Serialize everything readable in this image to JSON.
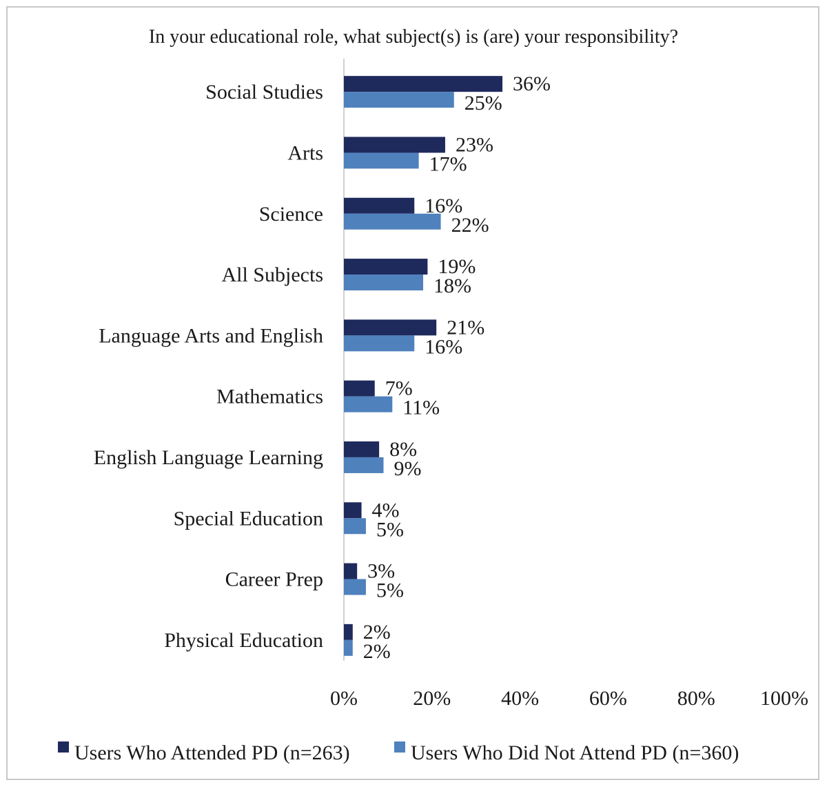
{
  "chart_data": {
    "type": "bar",
    "orientation": "horizontal",
    "title": "In your educational role, what subject(s) is (are) your responsibility?",
    "xlabel": "",
    "ylabel": "",
    "categories": [
      "Social Studies",
      "Arts",
      "Science",
      "All Subjects",
      "Language Arts and English",
      "Mathematics",
      "English Language Learning",
      "Special Education",
      "Career Prep",
      "Physical Education"
    ],
    "series": [
      {
        "name": "Users Who Attended PD (n=263)",
        "color": "#1f2a5c",
        "values": [
          36,
          23,
          16,
          19,
          21,
          7,
          8,
          4,
          3,
          2
        ],
        "labels": [
          "36%",
          "23%",
          "16%",
          "19%",
          "21%",
          "7%",
          "8%",
          "4%",
          "3%",
          "2%"
        ]
      },
      {
        "name": "Users Who Did Not Attend PD (n=360)",
        "color": "#4f81bd",
        "values": [
          25,
          17,
          22,
          18,
          16,
          11,
          9,
          5,
          5,
          2
        ],
        "labels": [
          "25%",
          "17%",
          "22%",
          "18%",
          "16%",
          "11%",
          "9%",
          "5%",
          "5%",
          "2%"
        ]
      }
    ],
    "xlim": [
      0,
      100
    ],
    "ticks": [
      0,
      20,
      40,
      60,
      80,
      100
    ],
    "tick_labels": [
      "0%",
      "20%",
      "40%",
      "60%",
      "80%",
      "100%"
    ],
    "grid": false,
    "legend_position": "bottom"
  }
}
